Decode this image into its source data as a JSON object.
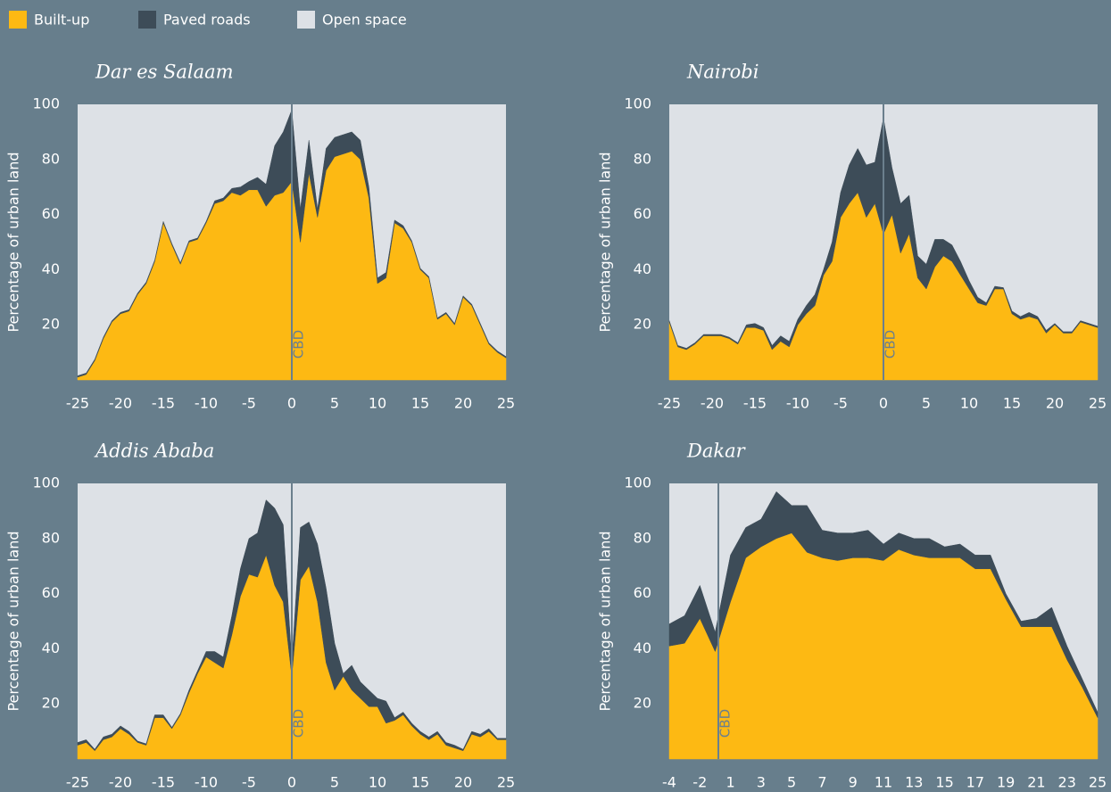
{
  "legend": [
    {
      "name": "Built-up",
      "color": "#fdb913"
    },
    {
      "name": "Paved roads",
      "color": "#3d4c58"
    },
    {
      "name": "Open space",
      "color": "#dde1e6"
    }
  ],
  "chart_data": [
    {
      "type": "area",
      "stacked": true,
      "title": "Dar es Salaam",
      "y_label": "Percentage of urban land",
      "annotation": "CBD",
      "x": [
        -25,
        -24,
        -23,
        -22,
        -21,
        -20,
        -19,
        -18,
        -17,
        -16,
        -15,
        -14,
        -13,
        -12,
        -11,
        -10,
        -9,
        -8,
        -7,
        -6,
        -5,
        -4,
        -3,
        -2,
        -1,
        0,
        1,
        2,
        3,
        4,
        5,
        6,
        7,
        8,
        9,
        10,
        11,
        12,
        13,
        14,
        15,
        16,
        17,
        18,
        19,
        20,
        21,
        22,
        23,
        24,
        25
      ],
      "xlim": [
        -25,
        25
      ],
      "xticks": [
        -25,
        -20,
        -15,
        -10,
        -5,
        0,
        5,
        10,
        15,
        20,
        25
      ],
      "ylim": [
        0,
        100
      ],
      "yticks": [
        20,
        40,
        60,
        80,
        100
      ],
      "series": [
        {
          "values": [
            1,
            2,
            7,
            15,
            21,
            24,
            25,
            31,
            35,
            43,
            57,
            49,
            42,
            50,
            51,
            57,
            64,
            65,
            68,
            67,
            69,
            69,
            63,
            67,
            68,
            72,
            50,
            75,
            59,
            76,
            81,
            82,
            83,
            80,
            66,
            35,
            37,
            57,
            55,
            50,
            40,
            37,
            22,
            24,
            20,
            30,
            27,
            20,
            13,
            10,
            8
          ]
        },
        {
          "values": [
            0.5,
            0.5,
            0.5,
            0.5,
            0.5,
            0.5,
            0.5,
            0.5,
            0.5,
            0.5,
            0.5,
            0.5,
            0.5,
            0.5,
            0.5,
            0.5,
            1,
            1,
            1.5,
            3,
            3,
            4.5,
            8,
            18,
            22,
            26,
            12,
            12,
            3,
            8,
            7,
            7,
            7,
            7,
            4,
            2,
            2,
            1,
            1,
            0.5,
            0.5,
            0.5,
            0.5,
            0.5,
            0.5,
            0.5,
            0.5,
            0.5,
            0.5,
            0.5,
            0.5
          ]
        }
      ]
    },
    {
      "type": "area",
      "stacked": true,
      "title": "Nairobi",
      "y_label": "Percentage of urban land",
      "annotation": "CBD",
      "x": [
        -25,
        -24,
        -23,
        -22,
        -21,
        -20,
        -19,
        -18,
        -17,
        -16,
        -15,
        -14,
        -13,
        -12,
        -11,
        -10,
        -9,
        -8,
        -7,
        -6,
        -5,
        -4,
        -3,
        -2,
        -1,
        0,
        1,
        2,
        3,
        4,
        5,
        6,
        7,
        8,
        9,
        10,
        11,
        12,
        13,
        14,
        15,
        16,
        17,
        18,
        19,
        20,
        21,
        22,
        23,
        24,
        25
      ],
      "xlim": [
        -25,
        25
      ],
      "xticks": [
        -25,
        -20,
        -15,
        -10,
        -5,
        0,
        5,
        10,
        15,
        20,
        25
      ],
      "ylim": [
        0,
        100
      ],
      "yticks": [
        20,
        40,
        60,
        80,
        100
      ],
      "series": [
        {
          "values": [
            21,
            12,
            11,
            13,
            16,
            16,
            16,
            15,
            13,
            19,
            19,
            18,
            11,
            14,
            12,
            20,
            24,
            27,
            38,
            43,
            59,
            64,
            68,
            59,
            64,
            53,
            60,
            46,
            53,
            37,
            33,
            41,
            45,
            43,
            38,
            33,
            28,
            27,
            33,
            33,
            24,
            22,
            23,
            22,
            17,
            20,
            17,
            17,
            21,
            20,
            19
          ]
        },
        {
          "values": [
            0.5,
            0.5,
            0.5,
            0.5,
            0.5,
            0.5,
            0.5,
            0.5,
            0.5,
            1,
            1.5,
            1,
            1.5,
            2,
            2,
            2,
            3,
            4,
            2,
            7,
            9,
            14,
            16,
            19,
            15,
            42,
            17,
            18,
            14,
            8,
            9,
            10,
            6,
            6,
            5,
            3,
            2,
            1,
            1,
            0.5,
            1,
            1,
            1.5,
            1,
            1,
            0.5,
            0.5,
            0.5,
            0.5,
            0.5,
            0.5
          ]
        }
      ]
    },
    {
      "type": "area",
      "stacked": true,
      "title": "Addis Ababa",
      "y_label": "Percentage of urban land",
      "annotation": "CBD",
      "x": [
        -25,
        -24,
        -23,
        -22,
        -21,
        -20,
        -19,
        -18,
        -17,
        -16,
        -15,
        -14,
        -13,
        -12,
        -11,
        -10,
        -9,
        -8,
        -7,
        -6,
        -5,
        -4,
        -3,
        -2,
        -1,
        0,
        1,
        2,
        3,
        4,
        5,
        6,
        7,
        8,
        9,
        10,
        11,
        12,
        13,
        14,
        15,
        16,
        17,
        18,
        19,
        20,
        21,
        22,
        23,
        24,
        25
      ],
      "xlim": [
        -25,
        25
      ],
      "xticks": [
        -25,
        -20,
        -15,
        -10,
        -5,
        0,
        5,
        10,
        15,
        20,
        25
      ],
      "ylim": [
        0,
        100
      ],
      "yticks": [
        20,
        40,
        60,
        80,
        100
      ],
      "series": [
        {
          "values": [
            5,
            6,
            3,
            7,
            8,
            11,
            9,
            6,
            5,
            15,
            15,
            11,
            16,
            24,
            31,
            37,
            35,
            33,
            45,
            59,
            67,
            66,
            74,
            63,
            57,
            30,
            65,
            70,
            57,
            35,
            25,
            30,
            25,
            22,
            19,
            19,
            13,
            14,
            16,
            12,
            9,
            7,
            9,
            5,
            4,
            3,
            9,
            8,
            10,
            7,
            7
          ]
        },
        {
          "values": [
            1,
            1,
            0.5,
            1,
            1,
            1,
            1,
            0.5,
            0.5,
            1,
            1,
            0.5,
            0.5,
            1,
            1,
            2,
            4,
            4,
            7,
            10,
            13,
            16,
            20,
            28,
            28,
            5,
            19,
            16,
            21,
            27,
            17,
            1,
            9,
            6,
            6,
            3,
            8,
            1,
            1,
            1,
            1,
            1,
            1,
            1,
            1,
            0.5,
            1,
            1,
            1,
            0.5,
            0.5
          ]
        }
      ]
    },
    {
      "type": "area",
      "stacked": true,
      "title": "Dakar",
      "y_label": "Percentage of urban land",
      "annotation": "CBD",
      "categories": [
        "-4",
        null,
        "-2",
        null,
        "1",
        null,
        "3",
        null,
        "5",
        null,
        "7",
        null,
        "9",
        null,
        "11",
        null,
        "13",
        null,
        "15",
        null,
        "17",
        null,
        "19",
        null,
        "21",
        null,
        "23",
        null,
        "25"
      ],
      "ylim": [
        0,
        100
      ],
      "yticks": [
        20,
        40,
        60,
        80,
        100
      ],
      "series": [
        {
          "values": [
            41,
            42,
            51,
            39,
            57,
            73,
            77,
            80,
            82,
            75,
            73,
            72,
            73,
            73,
            72,
            76,
            74,
            73,
            73,
            73,
            69,
            69,
            58,
            48,
            48,
            48,
            36,
            26,
            15
          ]
        },
        {
          "values": [
            8,
            10,
            12,
            7,
            17,
            11,
            10,
            17,
            10,
            17,
            10,
            10,
            9,
            10,
            6,
            6,
            6,
            7,
            4,
            5,
            5,
            5,
            2,
            2,
            3,
            7,
            5,
            3,
            2
          ]
        }
      ]
    }
  ]
}
